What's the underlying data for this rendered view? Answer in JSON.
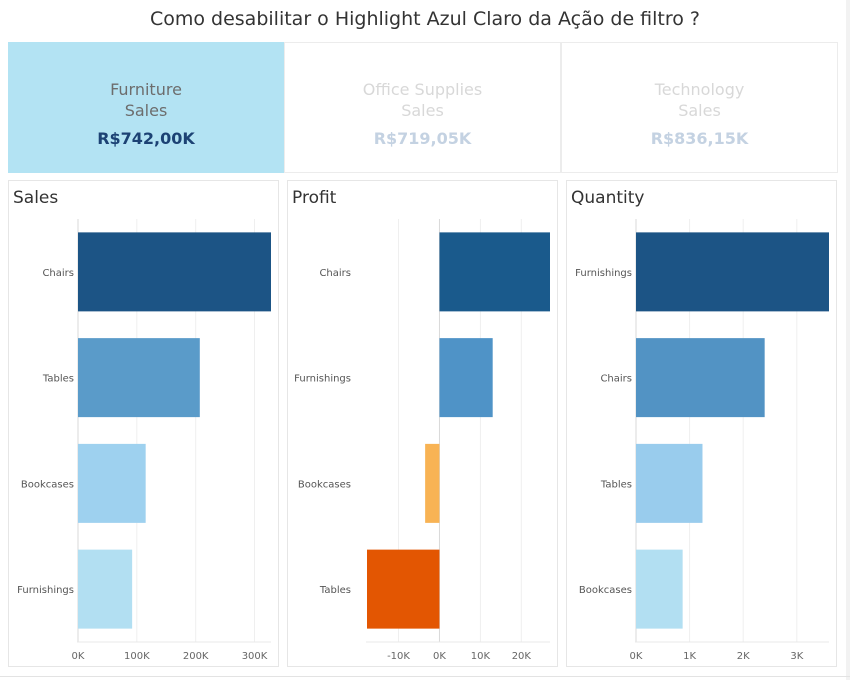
{
  "title": "Como desabilitar o  Highlight  Azul Claro da Ação de filtro ?",
  "kpis": [
    {
      "label": "Furniture\nSales",
      "value": "R$742,00K",
      "selected": true
    },
    {
      "label": "Office Supplies\nSales",
      "value": "R$719,05K",
      "selected": false
    },
    {
      "label": "Technology\nSales",
      "value": "R$836,15K",
      "selected": false
    }
  ],
  "chart_data": [
    {
      "type": "bar",
      "orientation": "horizontal",
      "title": "Sales",
      "categories": [
        "Chairs",
        "Tables",
        "Bookcases",
        "Furnishings"
      ],
      "values": [
        328000,
        207000,
        115000,
        92000
      ],
      "xlim": [
        0,
        328000
      ],
      "ticks": [
        0,
        100000,
        200000,
        300000
      ],
      "tick_labels": [
        "0K",
        "100K",
        "200K",
        "300K"
      ],
      "colors": [
        "#1c5485",
        "#5a9bc9",
        "#9ed1ef",
        "#b2dff2"
      ],
      "grid": true
    },
    {
      "type": "bar",
      "orientation": "horizontal",
      "title": "Profit",
      "categories": [
        "Chairs",
        "Furnishings",
        "Bookcases",
        "Tables"
      ],
      "values": [
        27000,
        13000,
        -3500,
        -17700
      ],
      "xlim": [
        -17700,
        27000
      ],
      "ticks": [
        -10000,
        0,
        10000,
        20000
      ],
      "tick_labels": [
        "-10K",
        "0K",
        "10K",
        "20K"
      ],
      "colors": [
        "#1a5a8c",
        "#4f93c7",
        "#f8b354",
        "#e35602"
      ],
      "grid": true
    },
    {
      "type": "bar",
      "orientation": "horizontal",
      "title": "Quantity",
      "categories": [
        "Furnishings",
        "Chairs",
        "Tables",
        "Bookcases"
      ],
      "values": [
        3600,
        2400,
        1240,
        870
      ],
      "xlim": [
        0,
        3600
      ],
      "ticks": [
        0,
        1000,
        2000,
        3000
      ],
      "tick_labels": [
        "0K",
        "1K",
        "2K",
        "3K"
      ],
      "colors": [
        "#1c5485",
        "#5293c4",
        "#99cced",
        "#b2dff2"
      ],
      "grid": true
    }
  ]
}
